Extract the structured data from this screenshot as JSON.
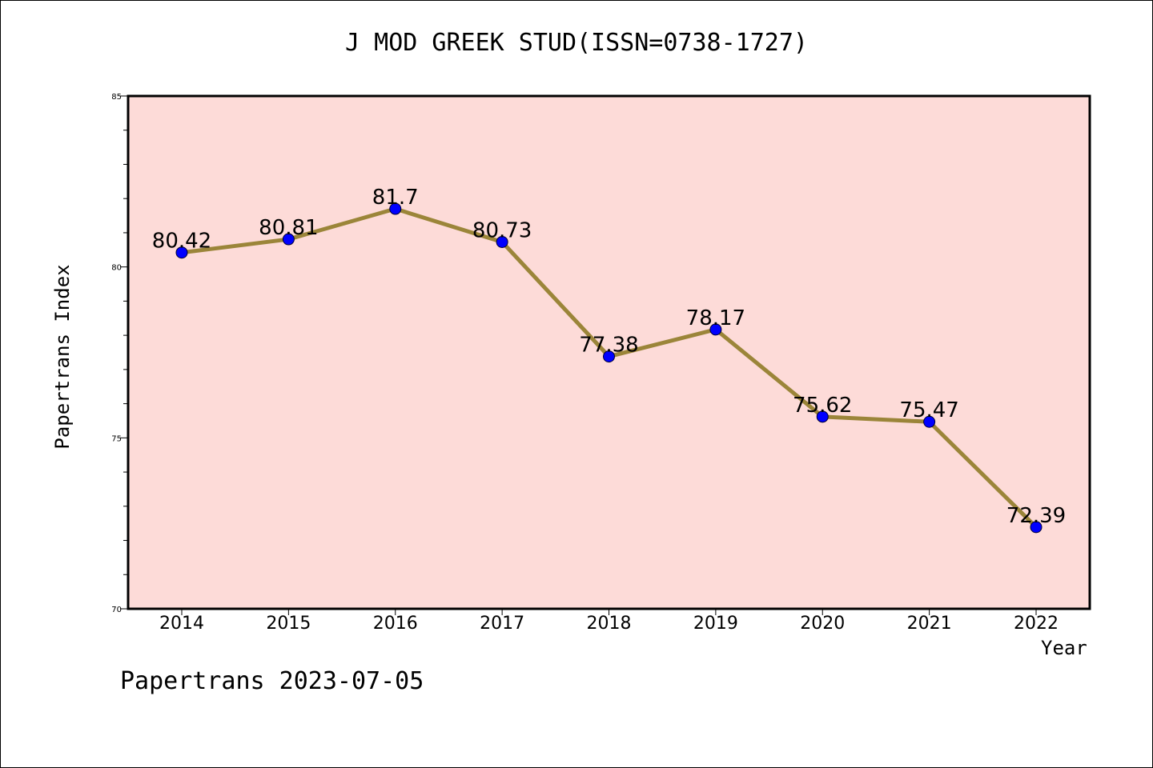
{
  "title": "J MOD GREEK STUD(ISSN=0738-1727)",
  "footer": "Papertrans 2023-07-05",
  "colors": {
    "plot_background": "#fddbd8",
    "line": "#9b8539",
    "marker": "#0000ff",
    "axis": "#000000"
  },
  "chart_data": {
    "type": "line",
    "title": "J MOD GREEK STUD(ISSN=0738-1727)",
    "xlabel": "Year",
    "ylabel": "Papertrans Index",
    "categories": [
      "2014",
      "2015",
      "2016",
      "2017",
      "2018",
      "2019",
      "2020",
      "2021",
      "2022"
    ],
    "series": [
      {
        "values": [
          80.42,
          80.81,
          81.7,
          80.73,
          77.38,
          78.17,
          75.62,
          75.47,
          72.39
        ],
        "data_labels": [
          "80.42",
          "80.81",
          "81.7",
          "80.73",
          "77.38",
          "78.17",
          "75.62",
          "75.47",
          "72.39"
        ]
      }
    ],
    "ylim": [
      70,
      85
    ],
    "yticks": [
      "70",
      "75",
      "80",
      "85"
    ],
    "grid": false,
    "legend": "none"
  }
}
